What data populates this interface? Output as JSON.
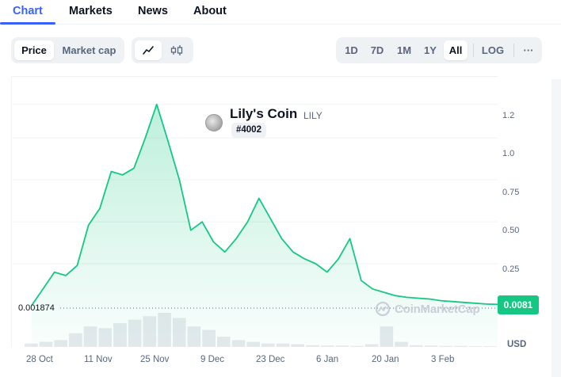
{
  "tabs": [
    {
      "label": "Chart",
      "active": true
    },
    {
      "label": "Markets",
      "active": false
    },
    {
      "label": "News",
      "active": false
    },
    {
      "label": "About",
      "active": false
    }
  ],
  "toolbar": {
    "price_label": "Price",
    "market_cap_label": "Market cap",
    "line_icon": "line-chart-icon",
    "candle_icon": "candlestick-icon",
    "ranges": [
      "1D",
      "7D",
      "1M",
      "1Y",
      "All"
    ],
    "selected_range": "All",
    "log_label": "LOG",
    "more_label": "···"
  },
  "coin": {
    "name": "Lily's Coin",
    "symbol": "LILY",
    "rank": "#4002"
  },
  "chart_data": {
    "type": "area",
    "y_ticks": [
      "1.2",
      "1.0",
      "0.75",
      "0.50",
      "0.25"
    ],
    "ylim": [
      0,
      1.35
    ],
    "x_ticks": [
      "28 Oct",
      "11 Nov",
      "25 Nov",
      "9 Dec",
      "23 Dec",
      "6 Jan",
      "20 Jan",
      "3 Feb"
    ],
    "current_price": "0.0081",
    "min_label": "0.001874",
    "currency": "USD",
    "series": [
      {
        "values": [
          0.0019,
          0.1,
          0.2,
          0.18,
          0.24,
          0.48,
          0.58,
          0.8,
          0.78,
          0.82,
          1.0,
          1.2,
          0.98,
          0.75,
          0.45,
          0.5,
          0.38,
          0.32,
          0.4,
          0.5,
          0.64,
          0.52,
          0.4,
          0.32,
          0.28,
          0.25,
          0.2,
          0.28,
          0.4,
          0.15,
          0.1,
          0.08,
          0.06,
          0.05,
          0.045,
          0.04,
          0.03,
          0.025,
          0.02,
          0.015,
          0.01,
          0.0081
        ],
        "color": "#16c784"
      }
    ],
    "volume": [
      0.1,
      0.15,
      0.2,
      0.4,
      0.6,
      0.55,
      0.7,
      0.8,
      0.9,
      1.0,
      0.85,
      0.6,
      0.5,
      0.3,
      0.2,
      0.15,
      0.1,
      0.1,
      0.08,
      0.05,
      0.04,
      0.04,
      0.03,
      0.08,
      0.6,
      0.15,
      0.05,
      0.04,
      0.03,
      0.03,
      0.02,
      0.02
    ]
  },
  "watermark": "CoinMarketCap"
}
